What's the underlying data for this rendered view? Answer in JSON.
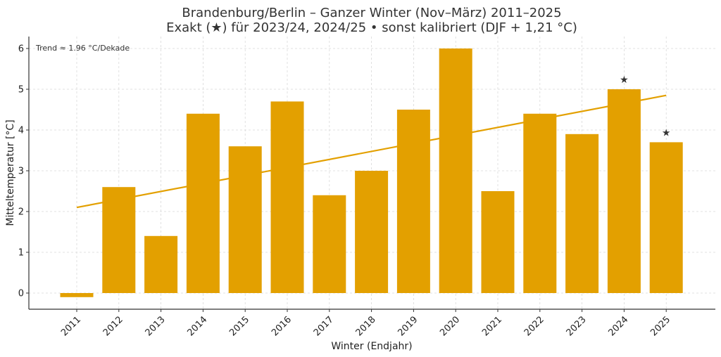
{
  "chart_data": {
    "type": "bar",
    "title": "Brandenburg/Berlin – Ganzer Winter (Nov–März) 2011–2025",
    "subtitle": "Exakt (★) für 2023/24, 2024/25 • sonst kalibriert (DJF + 1,21 °C)",
    "xlabel": "Winter (Endjahr)",
    "ylabel": "Mitteltemperatur [°C]",
    "categories": [
      "2011",
      "2012",
      "2013",
      "2014",
      "2015",
      "2016",
      "2017",
      "2018",
      "2019",
      "2020",
      "2021",
      "2022",
      "2023",
      "2024",
      "2025"
    ],
    "values": [
      -0.1,
      2.6,
      1.4,
      4.4,
      3.6,
      4.7,
      2.4,
      3.0,
      4.5,
      6.0,
      2.5,
      4.4,
      3.9,
      5.0,
      3.7
    ],
    "exact_markers": [
      "2024",
      "2025"
    ],
    "marker_symbol": "★",
    "trend": {
      "start": 2.1,
      "end": 4.85,
      "label": "Trend ≈ 1.96 °C/Dekade"
    },
    "yticks": [
      0,
      1,
      2,
      3,
      4,
      5,
      6
    ],
    "ylim": [
      -0.38,
      6.3
    ],
    "grid": true,
    "colors": {
      "bar": "#E3A000",
      "trend": "#E3A000",
      "text": "#333333"
    }
  }
}
